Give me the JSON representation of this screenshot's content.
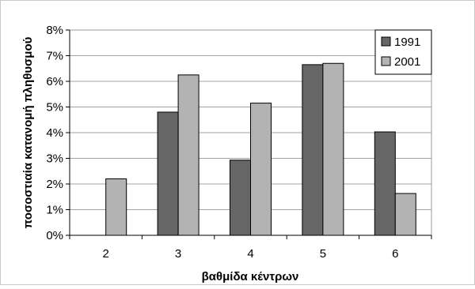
{
  "chart_data": {
    "type": "bar",
    "categories": [
      "2",
      "3",
      "4",
      "5",
      "6"
    ],
    "series": [
      {
        "name": "1991",
        "values": [
          null,
          4.8,
          2.93,
          6.65,
          4.03
        ],
        "color": "#666666"
      },
      {
        "name": "2001",
        "values": [
          2.2,
          6.25,
          5.15,
          6.7,
          1.63
        ],
        "color": "#b3b3b3"
      }
    ],
    "title": "",
    "xlabel": "βαθμίδα κέντρων",
    "ylabel": "ποσοστιαία κατανομή πληθυσμού",
    "ylim": [
      0,
      8
    ],
    "y_ticks": [
      "0%",
      "1%",
      "2%",
      "3%",
      "4%",
      "5%",
      "6%",
      "7%",
      "8%"
    ],
    "y_tick_values": [
      0,
      1,
      2,
      3,
      4,
      5,
      6,
      7,
      8
    ],
    "grid": true,
    "legend_position": "top-right"
  }
}
